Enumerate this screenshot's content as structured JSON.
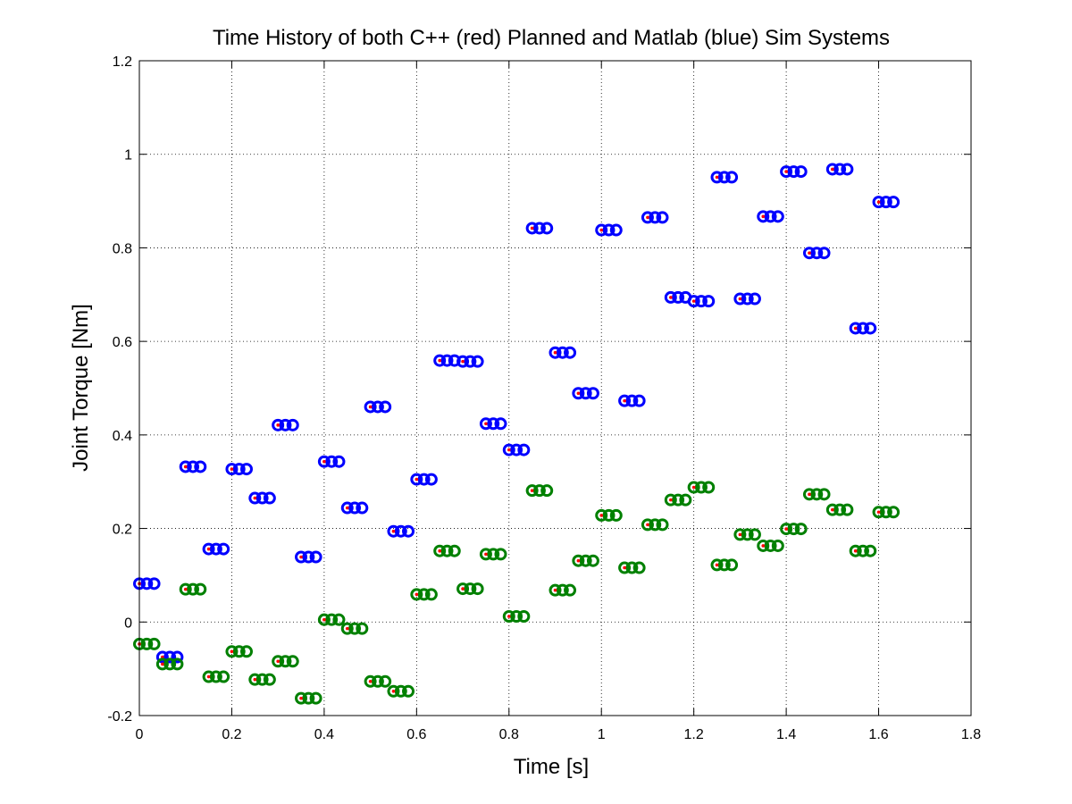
{
  "chart_data": {
    "type": "scatter",
    "title": "Time History of both C++ (red) Planned and Matlab (blue) Sim Systems",
    "xlabel": "Time [s]",
    "ylabel": "Joint Torque [Nm]",
    "xlim": [
      0,
      1.8
    ],
    "ylim": [
      -0.2,
      1.2
    ],
    "xticks": [
      0,
      0.2,
      0.4,
      0.6,
      0.8,
      1,
      1.2,
      1.4,
      1.6,
      1.8
    ],
    "yticks": [
      -0.2,
      0,
      0.2,
      0.4,
      0.6,
      0.8,
      1,
      1.2
    ],
    "grid": true,
    "sample_offsets": [
      0,
      0.016,
      0.032
    ],
    "series": [
      {
        "color": "#0000ff",
        "marker": "circle",
        "x": [
          0,
          0.05,
          0.1,
          0.15,
          0.2,
          0.25,
          0.3,
          0.35,
          0.4,
          0.45,
          0.5,
          0.55,
          0.6,
          0.65,
          0.7,
          0.75,
          0.8,
          0.85,
          0.9,
          0.95,
          1.0,
          1.05,
          1.1,
          1.15,
          1.2,
          1.25,
          1.3,
          1.35,
          1.4,
          1.45,
          1.5,
          1.55,
          1.6
        ],
        "y": [
          0.082,
          -0.075,
          0.332,
          0.156,
          0.327,
          0.265,
          0.421,
          0.139,
          0.343,
          0.244,
          0.46,
          0.194,
          0.305,
          0.559,
          0.557,
          0.424,
          0.368,
          0.842,
          0.576,
          0.489,
          0.838,
          0.473,
          0.865,
          0.694,
          0.686,
          0.951,
          0.691,
          0.867,
          0.963,
          0.789,
          0.968,
          0.628,
          0.898
        ]
      },
      {
        "color": "#008000",
        "marker": "circle",
        "x": [
          0,
          0.05,
          0.1,
          0.15,
          0.2,
          0.25,
          0.3,
          0.35,
          0.4,
          0.45,
          0.5,
          0.55,
          0.6,
          0.65,
          0.7,
          0.75,
          0.8,
          0.85,
          0.9,
          0.95,
          1.0,
          1.05,
          1.1,
          1.15,
          1.2,
          1.25,
          1.3,
          1.35,
          1.4,
          1.45,
          1.5,
          1.55,
          1.6
        ],
        "y": [
          -0.047,
          -0.09,
          0.07,
          -0.117,
          -0.063,
          -0.123,
          -0.084,
          -0.163,
          0.005,
          -0.014,
          -0.127,
          -0.148,
          0.059,
          0.152,
          0.071,
          0.145,
          0.012,
          0.281,
          0.068,
          0.131,
          0.228,
          0.116,
          0.208,
          0.261,
          0.288,
          0.122,
          0.187,
          0.163,
          0.199,
          0.273,
          0.24,
          0.152,
          0.235
        ]
      }
    ],
    "planned_marker_color": "#ff0000"
  }
}
